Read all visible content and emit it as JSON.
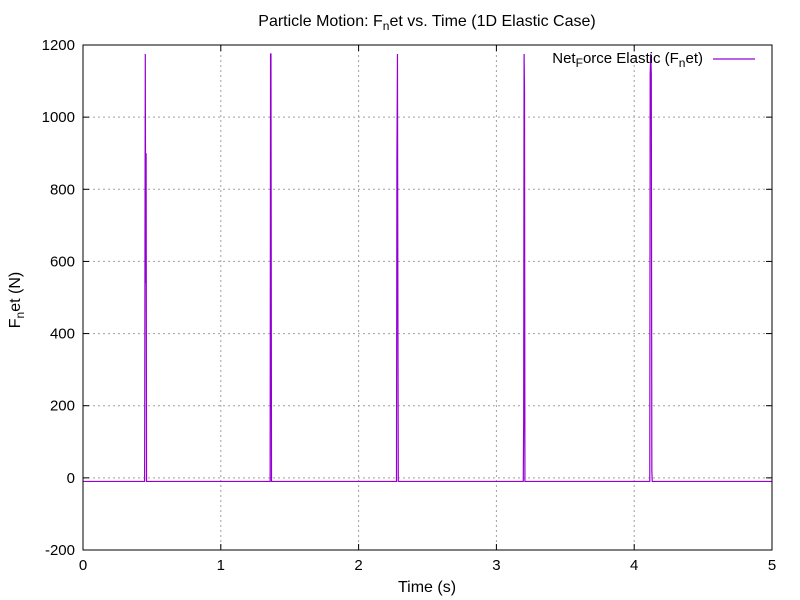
{
  "chart_data": {
    "type": "line",
    "title": {
      "prefix": "Particle Motion: F",
      "sub": "n",
      "suffix": "et vs. Time (1D Elastic Case)"
    },
    "xlabel": "Time (s)",
    "ylabel": {
      "prefix": "F",
      "sub": "n",
      "suffix": "et (N)"
    },
    "xlim": [
      0,
      5
    ],
    "ylim": [
      -200,
      1200
    ],
    "x_ticks": [
      0,
      1,
      2,
      3,
      4,
      5
    ],
    "y_ticks": [
      -200,
      0,
      200,
      400,
      600,
      800,
      1000,
      1200
    ],
    "x_tick_labels": [
      "0",
      "1",
      "2",
      "3",
      "4",
      "5"
    ],
    "y_tick_labels": [
      "-200",
      "0",
      "200",
      "400",
      "600",
      "800",
      "1000",
      "1200"
    ],
    "grid": true,
    "legend_position": "top-right",
    "series": [
      {
        "name": {
          "p1": "Net",
          "s1": "F",
          "p2": "orce Elastic (F",
          "s2": "n",
          "p3": "et)"
        },
        "color": "#9400d3",
        "x": [
          0,
          0.447,
          0.448,
          0.452,
          0.455,
          0.458,
          0.461,
          0.464,
          0.466,
          0.468,
          1.358,
          1.361,
          1.364,
          1.368,
          1.371,
          2.275,
          2.278,
          2.282,
          2.285,
          2.288,
          2.291,
          2.294,
          2.297,
          3.195,
          3.198,
          3.201,
          3.204,
          3.207,
          3.21,
          4.113,
          4.116,
          4.12,
          4.124,
          4.128,
          4.131,
          4.133,
          4.136,
          5
        ],
        "y": [
          -10,
          -10,
          180,
          1175,
          540,
          900,
          -10,
          -10,
          -10,
          -10,
          -10,
          1175,
          1175,
          -10,
          -10,
          -10,
          880,
          1175,
          500,
          -10,
          -10,
          -10,
          -10,
          -10,
          160,
          1175,
          1070,
          -10,
          -10,
          -10,
          1120,
          1175,
          1120,
          20,
          -10,
          -10,
          -10,
          -10
        ]
      }
    ]
  }
}
